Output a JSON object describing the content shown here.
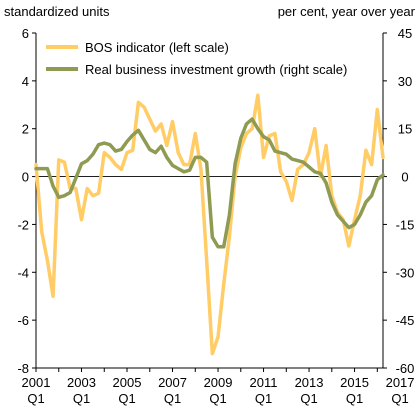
{
  "chart_data": {
    "type": "line",
    "left_axis": {
      "title": "standardized units",
      "ylim": [
        -8,
        6
      ],
      "ticks": [
        -8,
        -6,
        -4,
        -2,
        0,
        2,
        4,
        6
      ]
    },
    "right_axis": {
      "title": "per cent, year over year",
      "ylim": [
        -60,
        45
      ],
      "ticks": [
        -60,
        -45,
        -30,
        -15,
        0,
        15,
        30,
        45
      ]
    },
    "x_ticks": [
      {
        "year": "2001",
        "q": "Q1"
      },
      {
        "year": "2003",
        "q": "Q1"
      },
      {
        "year": "2005",
        "q": "Q1"
      },
      {
        "year": "2007",
        "q": "Q1"
      },
      {
        "year": "2009",
        "q": "Q1"
      },
      {
        "year": "2011",
        "q": "Q1"
      },
      {
        "year": "2013",
        "q": "Q1"
      },
      {
        "year": "2015",
        "q": "Q1"
      },
      {
        "year": "2017",
        "q": "Q1"
      }
    ],
    "x_start": "2001 Q1",
    "legend_position": "top-left",
    "series": [
      {
        "name": "BOS indicator (left scale)",
        "axis": "left",
        "color": "#ffcc66",
        "values": [
          0.5,
          -2.3,
          -3.5,
          -5.0,
          0.7,
          0.6,
          -0.5,
          -0.5,
          -1.8,
          -0.5,
          -0.8,
          -0.7,
          1.0,
          0.8,
          0.5,
          0.3,
          1.0,
          1.1,
          3.1,
          2.9,
          2.4,
          1.9,
          2.2,
          1.3,
          2.3,
          1.0,
          0.5,
          0.5,
          1.8,
          0.3,
          -3.5,
          -7.4,
          -6.7,
          -4.5,
          -2.5,
          0.0,
          1.2,
          1.8,
          2.0,
          3.4,
          0.8,
          1.7,
          1.8,
          0.2,
          -0.2,
          -1.0,
          0.3,
          0.5,
          1.0,
          2.0,
          0.0,
          1.3,
          -0.8,
          -1.5,
          -1.8,
          -2.9,
          -1.8,
          -0.8,
          1.1,
          0.5,
          2.8,
          0.8
        ]
      },
      {
        "name": "Real business investment growth (right scale)",
        "axis": "right",
        "color": "#8f9a52",
        "values": [
          2.5,
          2.5,
          2.5,
          -3.0,
          -6.5,
          -6.0,
          -5.0,
          -0.5,
          4.0,
          5.0,
          7.0,
          10.0,
          10.5,
          10.0,
          8.0,
          8.5,
          11.0,
          13.0,
          14.5,
          11.5,
          8.5,
          7.5,
          9.5,
          6.0,
          3.5,
          2.5,
          1.5,
          2.0,
          6.0,
          6.0,
          4.5,
          -19.0,
          -22.0,
          -22.0,
          -12.0,
          4.0,
          12.0,
          16.5,
          18.0,
          15.0,
          12.5,
          11.5,
          8.0,
          7.5,
          7.0,
          5.5,
          5.0,
          4.5,
          3.0,
          1.5,
          1.0,
          -2.0,
          -8.0,
          -12.0,
          -14.0,
          -16.0,
          -15.0,
          -12.0,
          -8.0,
          -6.0,
          -1.0,
          0.5
        ]
      }
    ]
  }
}
